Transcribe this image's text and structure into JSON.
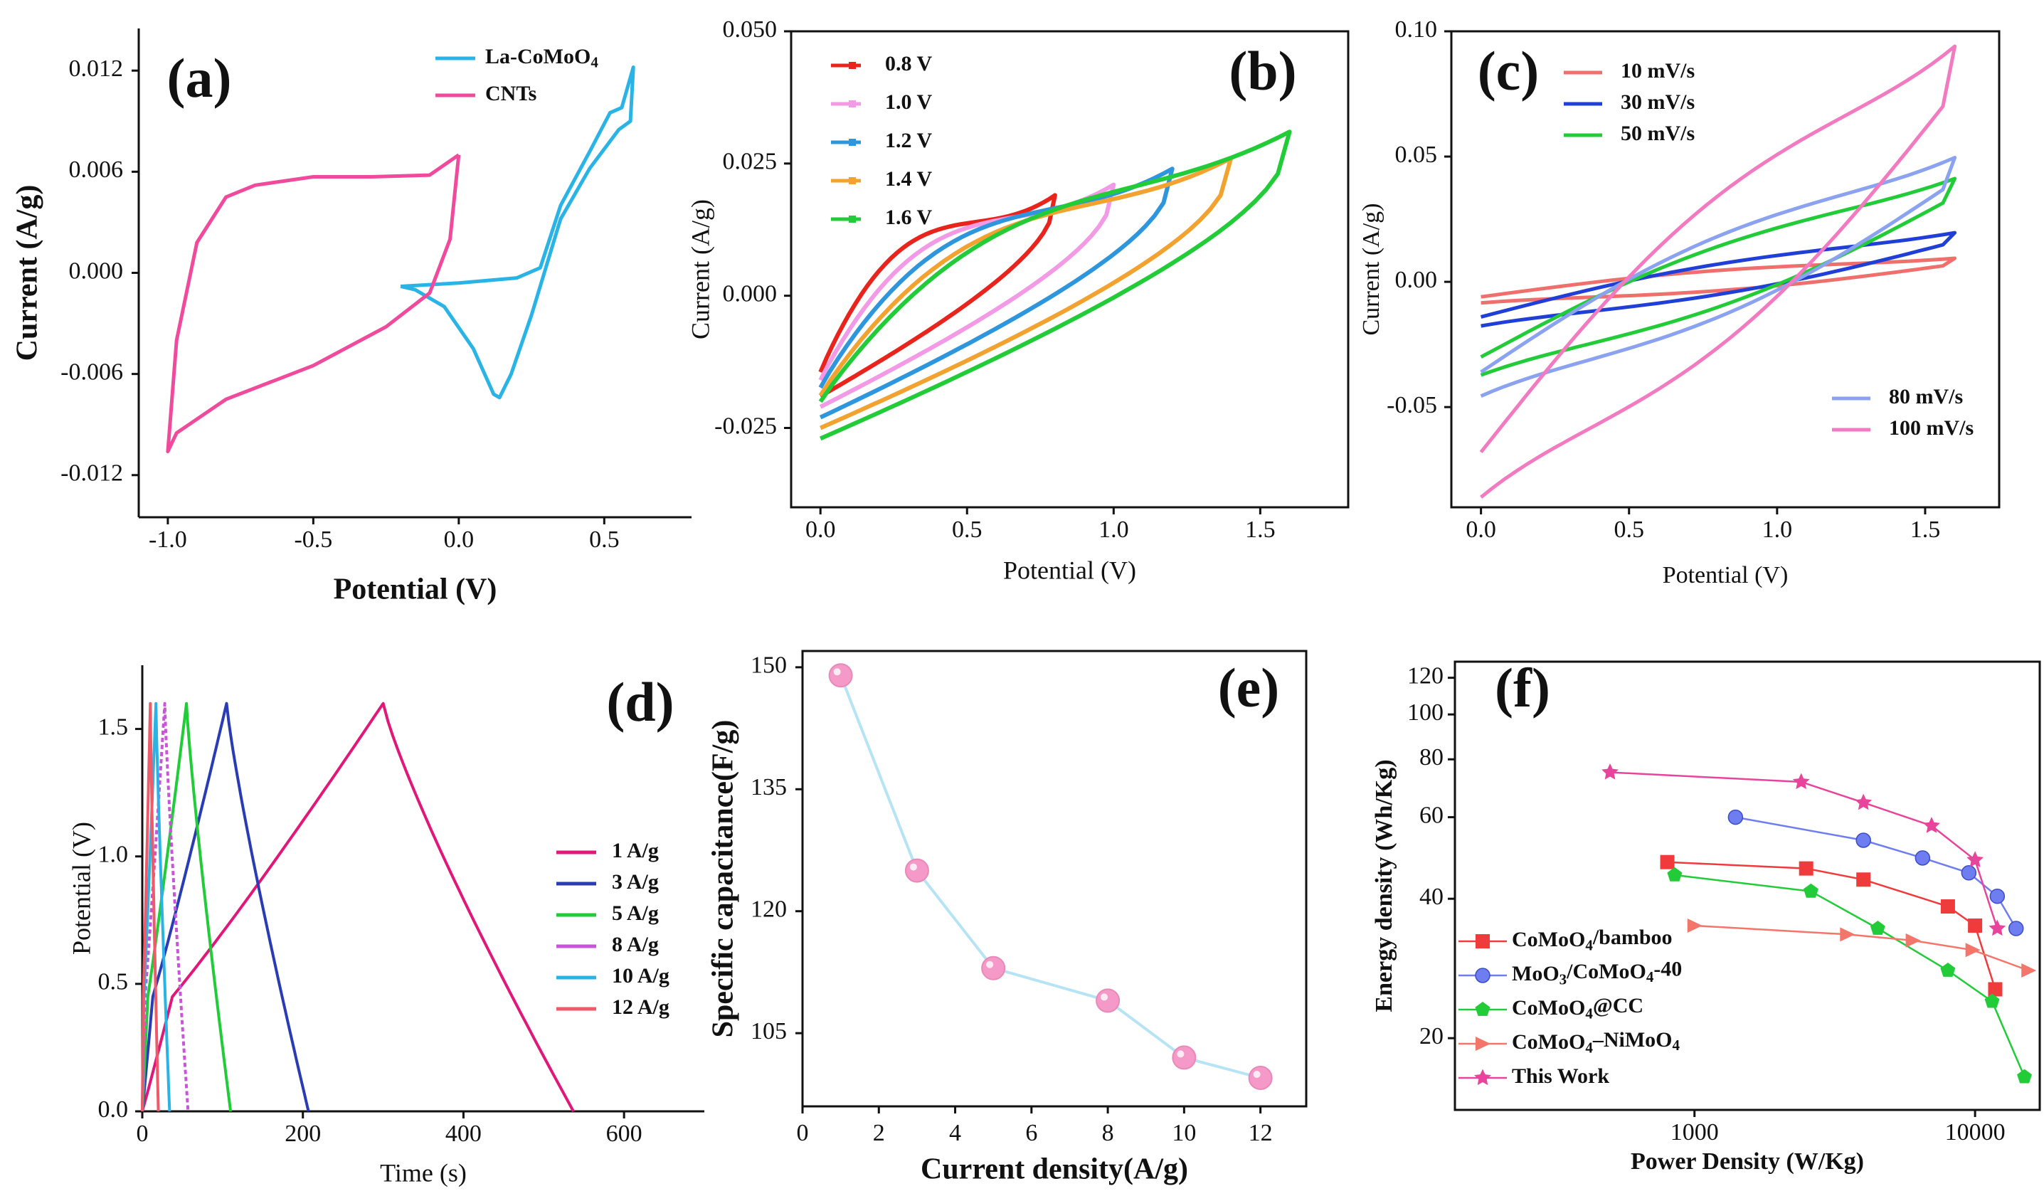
{
  "chart_data": [
    {
      "id": "a",
      "type": "line",
      "panel_label": "(a)",
      "xlabel": "Potential (V)",
      "ylabel": "Current (A/g)",
      "xlim": [
        -1.1,
        0.8
      ],
      "ylim": [
        -0.0145,
        0.0145
      ],
      "xticks": [
        -1.0,
        -0.5,
        0.0,
        0.5
      ],
      "xtick_labels": [
        "-1.0",
        "-0.5",
        "0.0",
        "0.5"
      ],
      "yticks": [
        -0.012,
        -0.006,
        0.0,
        0.006,
        0.012
      ],
      "ytick_labels": [
        "-0.012",
        "-0.006",
        "0.000",
        "0.006",
        "0.012"
      ],
      "legend_position": "top-right",
      "series": [
        {
          "name": "La-CoMoO4",
          "legend": [
            "La-CoMoO",
            "4"
          ],
          "color": "#2ab4e6",
          "closed": true,
          "x": [
            -0.2,
            0.0,
            0.2,
            0.28,
            0.35,
            0.45,
            0.52,
            0.56,
            0.6,
            0.59,
            0.55,
            0.45,
            0.35,
            0.25,
            0.18,
            0.14,
            0.12,
            0.05,
            -0.05,
            -0.15,
            -0.2
          ],
          "y": [
            -0.0008,
            -0.0006,
            -0.0003,
            0.0003,
            0.004,
            0.0072,
            0.0095,
            0.0098,
            0.0122,
            0.009,
            0.0085,
            0.0062,
            0.0032,
            -0.0025,
            -0.006,
            -0.0074,
            -0.0072,
            -0.0045,
            -0.002,
            -0.001,
            -0.0008
          ]
        },
        {
          "name": "CNTs",
          "legend": [
            "CNTs"
          ],
          "color": "#ef4a9c",
          "closed": true,
          "x": [
            0.0,
            -0.1,
            -0.3,
            -0.5,
            -0.7,
            -0.8,
            -0.9,
            -0.97,
            -1.0,
            -0.97,
            -0.8,
            -0.5,
            -0.25,
            -0.1,
            -0.03,
            0.0
          ],
          "y": [
            0.007,
            0.0058,
            0.0057,
            0.0057,
            0.0052,
            0.0045,
            0.0018,
            -0.004,
            -0.0106,
            -0.0095,
            -0.0075,
            -0.0055,
            -0.0032,
            -0.0012,
            0.002,
            0.007
          ]
        }
      ]
    },
    {
      "id": "b",
      "type": "line",
      "panel_label": "(b)",
      "xlabel": "Potential (V)",
      "ylabel": "Current (A/g)",
      "xlim": [
        -0.1,
        1.8
      ],
      "ylim": [
        -0.04,
        0.05
      ],
      "xticks": [
        0.0,
        0.5,
        1.0,
        1.5
      ],
      "xtick_labels": [
        "0.0",
        "0.5",
        "1.0",
        "1.5"
      ],
      "yticks": [
        -0.025,
        0.0,
        0.025,
        0.05
      ],
      "ytick_labels": [
        "-0.025",
        "0.000",
        "0.025",
        "0.050"
      ],
      "legend_position": "top-left",
      "series": [
        {
          "name": "0.8 V",
          "color": "#e8241c",
          "vmax": 0.8,
          "y_top_end": 0.019,
          "y_bot_start": -0.019
        },
        {
          "name": "1.0 V",
          "color": "#f29ae6",
          "vmax": 1.0,
          "y_top_end": 0.021,
          "y_bot_start": -0.021
        },
        {
          "name": "1.2 V",
          "color": "#2e96dc",
          "vmax": 1.2,
          "y_top_end": 0.024,
          "y_bot_start": -0.023
        },
        {
          "name": "1.4 V",
          "color": "#f2a22e",
          "vmax": 1.4,
          "y_top_end": 0.026,
          "y_bot_start": -0.025
        },
        {
          "name": "1.6 V",
          "color": "#22cc38",
          "vmax": 1.6,
          "y_top_end": 0.031,
          "y_bot_start": -0.027
        }
      ]
    },
    {
      "id": "c",
      "type": "line",
      "panel_label": "(c)",
      "xlabel": "Potential (V)",
      "ylabel": "Current (A/g)",
      "xlim": [
        -0.1,
        1.75
      ],
      "ylim": [
        -0.09,
        0.1
      ],
      "xticks": [
        0.0,
        0.5,
        1.0,
        1.5
      ],
      "xtick_labels": [
        "0.0",
        "0.5",
        "1.0",
        "1.5"
      ],
      "yticks": [
        -0.05,
        0.0,
        0.05,
        0.1
      ],
      "ytick_labels": [
        "-0.05",
        "0.00",
        "0.05",
        "0.10"
      ],
      "legend_position": "top-left / bottom-right",
      "series": [
        {
          "name": "10 mV/s",
          "color": "#ef6f6c",
          "ystart": -0.006,
          "yend": 0.007,
          "bulge": 0.004
        },
        {
          "name": "30 mV/s",
          "color": "#1f3fd6",
          "ystart": -0.014,
          "yend": 0.016,
          "bulge": 0.006
        },
        {
          "name": "50 mV/s",
          "color": "#22cc38",
          "ystart": -0.03,
          "yend": 0.034,
          "bulge": 0.012
        },
        {
          "name": "80 mV/s",
          "color": "#8aa2ef",
          "ystart": -0.036,
          "yend": 0.04,
          "bulge": 0.016
        },
        {
          "name": "100 mV/s",
          "color": "#f27ac0",
          "ystart": -0.068,
          "yend": 0.076,
          "bulge": 0.03
        }
      ]
    },
    {
      "id": "d",
      "type": "line",
      "panel_label": "(d)",
      "xlabel": "Time (s)",
      "ylabel": "Potential (V)",
      "xlim": [
        0,
        700
      ],
      "ylim": [
        0,
        1.75
      ],
      "xticks": [
        0,
        200,
        400,
        600
      ],
      "xtick_labels": [
        "0",
        "200",
        "400",
        "600"
      ],
      "yticks": [
        0.0,
        0.5,
        1.0,
        1.5
      ],
      "ytick_labels": [
        "0.0",
        "0.5",
        "1.0",
        "1.5"
      ],
      "legend_position": "right",
      "series": [
        {
          "name": "1  A/g",
          "color": "#e0187a",
          "t_peak": 300,
          "t_end": 537
        },
        {
          "name": "3  A/g",
          "color": "#2a3cb4",
          "t_peak": 105,
          "t_end": 207
        },
        {
          "name": "5  A/g",
          "color": "#22cc38",
          "t_peak": 55,
          "t_end": 110
        },
        {
          "name": "8  A/g",
          "color": "#c855d8",
          "t_peak": 28,
          "t_end": 57
        },
        {
          "name": "10  A/g",
          "color": "#2ab4e6",
          "t_peak": 17,
          "t_end": 34
        },
        {
          "name": "12  A/g",
          "color": "#ef5a6a",
          "t_peak": 10,
          "t_end": 20
        }
      ]
    },
    {
      "id": "e",
      "type": "scatter",
      "panel_label": "(e)",
      "xlabel": "Current density(A/g)",
      "ylabel": "Specific capacitance(F/g)",
      "xlim": [
        0,
        13.2
      ],
      "ylim": [
        96,
        152
      ],
      "xticks": [
        0,
        2,
        4,
        6,
        8,
        10,
        12
      ],
      "xtick_labels": [
        "0",
        "2",
        "4",
        "6",
        "8",
        "10",
        "12"
      ],
      "yticks": [
        105,
        120,
        135,
        150
      ],
      "ytick_labels": [
        "105",
        "120",
        "135",
        "150"
      ],
      "line_color": "#b6e4f4",
      "marker_color": "#f59ac8",
      "x": [
        1,
        3,
        5,
        8,
        10,
        12
      ],
      "y": [
        149,
        125,
        113,
        109,
        102,
        99.5
      ]
    },
    {
      "id": "f",
      "type": "scatter",
      "panel_label": "(f)",
      "scale": "log-log",
      "xlabel": "Power Density (W/Kg)",
      "ylabel": "Energy density (Wh/Kg)",
      "xlim": [
        140,
        17000
      ],
      "ylim": [
        14,
        130
      ],
      "xticks": [
        1000,
        10000
      ],
      "xtick_labels": [
        "1000",
        "10000"
      ],
      "yticks": [
        20,
        40,
        60,
        80,
        100,
        120
      ],
      "ytick_labels": [
        "20",
        "40",
        "60",
        "80",
        "100",
        "120"
      ],
      "legend_position": "bottom-left",
      "series": [
        {
          "name": "CoMoO4/bamboo",
          "legend": [
            "CoMoO",
            "4",
            "/bamboo"
          ],
          "color": "#ef3b3b",
          "marker": "square",
          "x": [
            800,
            2500,
            4000,
            8000,
            10000,
            11800
          ],
          "y": [
            48,
            46.5,
            44,
            38.5,
            35,
            25.5
          ]
        },
        {
          "name": "MoO3/CoMoO4-40",
          "legend": [
            "MoO",
            "3",
            "/CoMoO",
            "4",
            "-40"
          ],
          "color": "#6e7ef0",
          "marker": "circle",
          "x": [
            1400,
            4000,
            6500,
            9500,
            12000,
            14000
          ],
          "y": [
            60,
            53.5,
            49,
            45.5,
            40.5,
            34.5
          ]
        },
        {
          "name": "CoMoO4@CC",
          "legend": [
            "CoMoO",
            "4",
            "@CC"
          ],
          "color": "#22cc38",
          "marker": "pentagon",
          "x": [
            850,
            2600,
            4500,
            8000,
            11500,
            15000
          ],
          "y": [
            45,
            41.5,
            34.5,
            28,
            24,
            16.5
          ]
        },
        {
          "name": "CoMoO4–NiMoO4",
          "legend": [
            "CoMoO",
            "4",
            "–NiMoO",
            "4"
          ],
          "color": "#f4766a",
          "marker": "triangle-right",
          "x": [
            1000,
            3500,
            6000,
            9800,
            15500
          ],
          "y": [
            35,
            33.5,
            32.5,
            31,
            28
          ]
        },
        {
          "name": "This Work",
          "legend": [
            "This Work"
          ],
          "color": "#e8449c",
          "marker": "star",
          "x": [
            500,
            2400,
            4000,
            7000,
            10000,
            12000
          ],
          "y": [
            75,
            71.5,
            64.5,
            57.5,
            48.5,
            34.5
          ]
        }
      ]
    }
  ]
}
